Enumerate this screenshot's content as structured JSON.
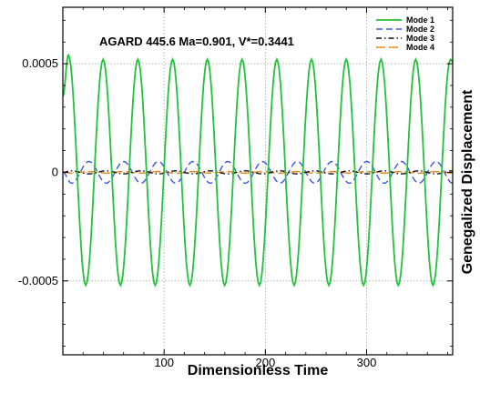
{
  "chart_data": {
    "type": "line",
    "title": "",
    "annotation": "AGARD 445.6  Ma=0.901,  V*=0.3441",
    "xlabel": "Dimensionless Time",
    "ylabel": "Genegalized Displacement",
    "xlim": [
      0,
      385
    ],
    "ylim": [
      -0.00084,
      0.00076
    ],
    "xticks": [
      100,
      200,
      300
    ],
    "xtick_labels": [
      "100",
      "200",
      "300"
    ],
    "yticks": [
      0.0005,
      0,
      -0.0005
    ],
    "ytick_labels": [
      "0.0005",
      "0",
      "-0.0005"
    ],
    "grid": true,
    "legend_position": "top-right",
    "series": [
      {
        "name": "Mode 1",
        "color": "#22c33a",
        "style": "solid",
        "amplitude": 0.00052,
        "period": 34.3,
        "x": [
          0,
          5.5,
          22.6,
          39.8,
          56.9,
          74.1,
          91.2,
          108.4,
          125.5,
          142.7,
          159.8,
          177.0,
          194.1,
          211.3,
          228.4,
          245.6,
          262.7,
          279.9,
          297.0,
          314.2,
          331.3,
          348.5,
          365.6,
          382.8,
          385
        ],
        "values": [
          0.00035,
          0.00054,
          -0.00052,
          0.00052,
          -0.00052,
          0.00052,
          -0.00052,
          0.00052,
          -0.00052,
          0.00052,
          -0.00052,
          0.00052,
          -0.00052,
          0.00052,
          -0.00052,
          0.00052,
          -0.00052,
          0.00052,
          -0.00052,
          0.00052,
          -0.00052,
          0.00052,
          -0.00052,
          0.00052,
          0.00051
        ]
      },
      {
        "name": "Mode 2",
        "color": "#3b55e6",
        "style": "dashed",
        "amplitude": 5e-05,
        "period": 34.3,
        "x": [
          0,
          8.6,
          25.7,
          42.9,
          60.0,
          77.2,
          94.3,
          111.5,
          128.6,
          145.8,
          162.9,
          180.1,
          197.2,
          214.4,
          231.5,
          248.7,
          265.8,
          283.0,
          300.1,
          317.3,
          334.4,
          351.6,
          368.7,
          385
        ],
        "values": [
          0.0,
          -5e-05,
          5e-05,
          -5e-05,
          5e-05,
          -5e-05,
          5e-05,
          -5e-05,
          5e-05,
          -5e-05,
          5e-05,
          -5e-05,
          5e-05,
          -5e-05,
          5e-05,
          -5e-05,
          5e-05,
          -5e-05,
          5e-05,
          -5e-05,
          5e-05,
          -5e-05,
          5e-05,
          -5e-05
        ]
      },
      {
        "name": "Mode 3",
        "color": "#111111",
        "style": "dashdot",
        "amplitude": 7e-06,
        "period": 34.3,
        "x": [
          0,
          8.6,
          25.7,
          42.9,
          60.0,
          77.2,
          94.3,
          111.5,
          128.6,
          145.8,
          162.9,
          180.1,
          197.2,
          214.4,
          231.5,
          248.7,
          265.8,
          283.0,
          300.1,
          317.3,
          334.4,
          351.6,
          368.7,
          385
        ],
        "values": [
          0.0,
          7e-06,
          -7e-06,
          7e-06,
          -7e-06,
          7e-06,
          -7e-06,
          7e-06,
          -7e-06,
          7e-06,
          -7e-06,
          7e-06,
          -7e-06,
          7e-06,
          -7e-06,
          7e-06,
          -7e-06,
          7e-06,
          -7e-06,
          7e-06,
          -7e-06,
          7e-06,
          -7e-06,
          7e-06
        ]
      },
      {
        "name": "Mode 4",
        "color": "#f08a1c",
        "style": "longdash",
        "amplitude": 4e-06,
        "period": 34.3,
        "x": [
          0,
          8.6,
          25.7,
          42.9,
          60.0,
          77.2,
          94.3,
          111.5,
          128.6,
          145.8,
          162.9,
          180.1,
          197.2,
          214.4,
          231.5,
          248.7,
          265.8,
          283.0,
          300.1,
          317.3,
          334.4,
          351.6,
          368.7,
          385
        ],
        "values": [
          0.0,
          -4e-06,
          4e-06,
          -4e-06,
          4e-06,
          -4e-06,
          4e-06,
          -4e-06,
          4e-06,
          -4e-06,
          4e-06,
          -4e-06,
          4e-06,
          -4e-06,
          4e-06,
          -4e-06,
          4e-06,
          -4e-06,
          4e-06,
          -4e-06,
          4e-06,
          -4e-06,
          4e-06,
          -4e-06
        ]
      }
    ]
  }
}
